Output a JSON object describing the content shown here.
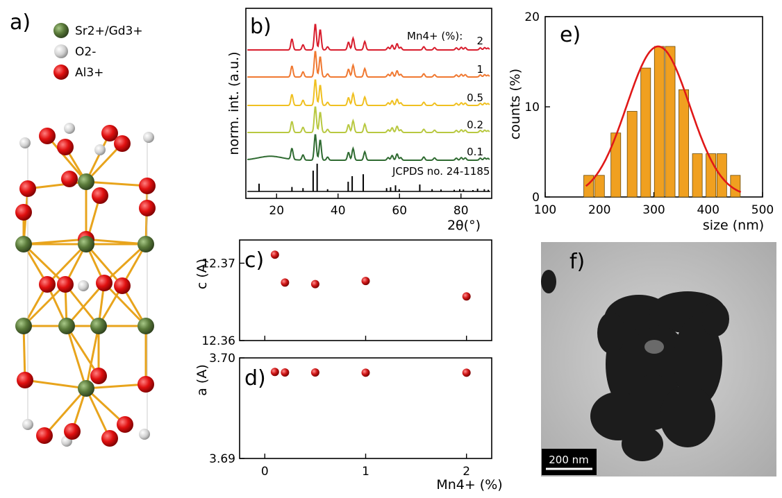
{
  "panels": {
    "a": "a)",
    "b": "b)",
    "c": "c)",
    "d": "d)",
    "e": "e)",
    "f": "f)"
  },
  "legend_a": [
    {
      "label": "Sr2+/Gd3+",
      "color": "#5a7a3a"
    },
    {
      "label": "O2-",
      "color": "#d8d8d8"
    },
    {
      "label": "Al3+",
      "color": "#e01010"
    }
  ],
  "chart_data": [
    {
      "panel": "b",
      "type": "line",
      "xlabel": "2θ(°)",
      "ylabel": "norm. int. (a.u.)",
      "xlim": [
        10,
        90
      ],
      "xticks": [
        20,
        40,
        60,
        80
      ],
      "series_header": "Mn4+ (%):",
      "series": [
        {
          "name": "2",
          "color": "#d81c2c"
        },
        {
          "name": "1",
          "color": "#f07830"
        },
        {
          "name": "0.5",
          "color": "#f0c020"
        },
        {
          "name": "0.2",
          "color": "#b8c840"
        },
        {
          "name": "0.1",
          "color": "#2e6a30"
        }
      ],
      "reference_label": "JCPDS no. 24-1185",
      "peaks": [
        {
          "x": 25.0,
          "h": 0.42
        },
        {
          "x": 28.6,
          "h": 0.2
        },
        {
          "x": 32.6,
          "h": 1.0
        },
        {
          "x": 34.2,
          "h": 0.78
        },
        {
          "x": 36.6,
          "h": 0.12
        },
        {
          "x": 43.4,
          "h": 0.3
        },
        {
          "x": 44.9,
          "h": 0.45
        },
        {
          "x": 48.7,
          "h": 0.32
        },
        {
          "x": 56.3,
          "h": 0.1
        },
        {
          "x": 57.6,
          "h": 0.18
        },
        {
          "x": 59.2,
          "h": 0.24
        },
        {
          "x": 60.4,
          "h": 0.1
        },
        {
          "x": 67.9,
          "h": 0.12
        },
        {
          "x": 71.4,
          "h": 0.09
        },
        {
          "x": 78.5,
          "h": 0.08
        },
        {
          "x": 80.1,
          "h": 0.1
        },
        {
          "x": 81.4,
          "h": 0.09
        },
        {
          "x": 86.3,
          "h": 0.08
        },
        {
          "x": 87.7,
          "h": 0.09
        },
        {
          "x": 88.8,
          "h": 0.07
        }
      ],
      "reference_peaks": [
        {
          "x": 14.3,
          "h": 0.28
        },
        {
          "x": 25.0,
          "h": 0.16
        },
        {
          "x": 28.6,
          "h": 0.12
        },
        {
          "x": 31.9,
          "h": 0.75
        },
        {
          "x": 33.2,
          "h": 1.0
        },
        {
          "x": 36.6,
          "h": 0.08
        },
        {
          "x": 43.3,
          "h": 0.35
        },
        {
          "x": 44.6,
          "h": 0.55
        },
        {
          "x": 48.2,
          "h": 0.62
        },
        {
          "x": 55.8,
          "h": 0.12
        },
        {
          "x": 57.1,
          "h": 0.15
        },
        {
          "x": 58.7,
          "h": 0.22
        },
        {
          "x": 59.9,
          "h": 0.08
        },
        {
          "x": 66.6,
          "h": 0.25
        },
        {
          "x": 70.6,
          "h": 0.08
        },
        {
          "x": 73.5,
          "h": 0.07
        },
        {
          "x": 77.8,
          "h": 0.06
        },
        {
          "x": 79.6,
          "h": 0.08
        },
        {
          "x": 80.8,
          "h": 0.07
        },
        {
          "x": 83.9,
          "h": 0.05
        },
        {
          "x": 85.4,
          "h": 0.1
        },
        {
          "x": 87.6,
          "h": 0.08
        },
        {
          "x": 88.9,
          "h": 0.06
        }
      ]
    },
    {
      "panel": "c",
      "type": "scatter",
      "ylabel": "c (A)",
      "xlim": [
        -0.25,
        2.25
      ],
      "ylim": [
        12.36,
        12.373
      ],
      "yticks": [
        "12.37",
        "12.36"
      ],
      "x": [
        0.1,
        0.2,
        0.5,
        1,
        2
      ],
      "y": [
        12.3711,
        12.3675,
        12.3673,
        12.3677,
        12.3657
      ],
      "color": "#d01818"
    },
    {
      "panel": "d",
      "type": "scatter",
      "ylabel": "a (A)",
      "xlabel": "Mn4+ (%)",
      "xlim": [
        -0.25,
        2.25
      ],
      "ylim": [
        3.69,
        3.7
      ],
      "yticks": [
        "3.70",
        "3.69"
      ],
      "xticks": [
        "0",
        "1",
        "2"
      ],
      "x": [
        0.1,
        0.2,
        0.5,
        1,
        2
      ],
      "y": [
        3.6986,
        3.69855,
        3.69855,
        3.69853,
        3.69853
      ],
      "color": "#d01818"
    },
    {
      "panel": "e",
      "type": "bar",
      "xlabel": "size (nm)",
      "ylabel": "counts (%)",
      "xlim": [
        100,
        500
      ],
      "ylim": [
        0,
        20
      ],
      "xticks": [
        "100",
        "200",
        "300",
        "400",
        "500"
      ],
      "yticks": [
        "0",
        "10",
        "20"
      ],
      "bin_centers": [
        180,
        200,
        230,
        260,
        285,
        310,
        330,
        355,
        380,
        405,
        425,
        450
      ],
      "bin_width": 18,
      "values": [
        2.4,
        2.4,
        7.1,
        9.5,
        14.3,
        16.7,
        16.7,
        11.9,
        4.8,
        4.8,
        4.8,
        2.4
      ],
      "bar_color": "#f0a020",
      "fit_color": "#e01818",
      "fit": {
        "amplitude": 16.7,
        "center": 308,
        "sigma": 58
      }
    }
  ],
  "tem": {
    "scale_label": "200 nm"
  }
}
